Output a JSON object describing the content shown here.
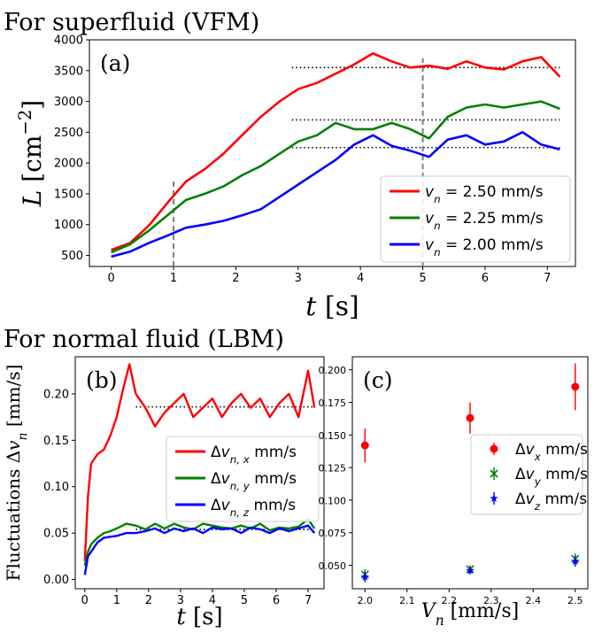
{
  "headings": {
    "top": "For superfluid (VFM)",
    "bottom": "For normal fluid (LBM)"
  },
  "chart_data": [
    {
      "type": "line",
      "panel_label": "(a)",
      "xlabel": "t [s]",
      "ylabel": "L [cm^-2]",
      "xlim": [
        -0.35,
        7.45
      ],
      "ylim": [
        320,
        4000
      ],
      "xticks": [
        0,
        1,
        2,
        3,
        4,
        5,
        6,
        7
      ],
      "yticks": [
        500,
        1000,
        1500,
        2000,
        2500,
        3000,
        3500,
        4000
      ],
      "grid": false,
      "legend_position": "bottom-right",
      "series": [
        {
          "name": "v_n = 2.50 mm/s",
          "color": "#ff0000",
          "x": [
            0,
            0.3,
            0.6,
            0.9,
            1.2,
            1.5,
            1.8,
            2.1,
            2.4,
            2.7,
            3.0,
            3.3,
            3.6,
            3.9,
            4.2,
            4.5,
            4.8,
            5.1,
            5.4,
            5.7,
            6.0,
            6.3,
            6.6,
            6.9,
            7.2
          ],
          "y": [
            590,
            700,
            980,
            1350,
            1700,
            1900,
            2150,
            2450,
            2750,
            3000,
            3200,
            3300,
            3450,
            3600,
            3780,
            3650,
            3550,
            3580,
            3530,
            3650,
            3550,
            3520,
            3650,
            3720,
            3400
          ]
        },
        {
          "name": "v_n = 2.25 mm/s",
          "color": "#008000",
          "x": [
            0,
            0.3,
            0.6,
            0.9,
            1.2,
            1.5,
            1.8,
            2.1,
            2.4,
            2.7,
            3.0,
            3.3,
            3.6,
            3.9,
            4.2,
            4.5,
            4.8,
            5.1,
            5.4,
            5.7,
            6.0,
            6.3,
            6.6,
            6.9,
            7.2
          ],
          "y": [
            550,
            680,
            900,
            1150,
            1400,
            1500,
            1620,
            1800,
            1950,
            2150,
            2350,
            2450,
            2650,
            2550,
            2550,
            2650,
            2550,
            2400,
            2750,
            2900,
            2950,
            2900,
            2950,
            3000,
            2880
          ]
        },
        {
          "name": "v_n = 2.00 mm/s",
          "color": "#0000ff",
          "x": [
            0,
            0.3,
            0.6,
            0.9,
            1.2,
            1.5,
            1.8,
            2.1,
            2.4,
            2.7,
            3.0,
            3.3,
            3.6,
            3.9,
            4.2,
            4.5,
            4.8,
            5.1,
            5.4,
            5.7,
            6.0,
            6.3,
            6.6,
            6.9,
            7.2
          ],
          "y": [
            480,
            560,
            700,
            820,
            950,
            1000,
            1060,
            1150,
            1250,
            1450,
            1650,
            1850,
            2050,
            2300,
            2450,
            2280,
            2200,
            2100,
            2380,
            2450,
            2300,
            2350,
            2500,
            2300,
            2220
          ]
        }
      ],
      "reference_lines": [
        {
          "kind": "horizontal",
          "style": "dotted",
          "y": 3550,
          "x_range": [
            2.9,
            7.2
          ]
        },
        {
          "kind": "horizontal",
          "style": "dotted",
          "y": 2700,
          "x_range": [
            2.9,
            7.2
          ]
        },
        {
          "kind": "horizontal",
          "style": "dotted",
          "y": 2250,
          "x_range": [
            2.9,
            7.2
          ]
        },
        {
          "kind": "vertical",
          "style": "dashed",
          "x": 1,
          "y_range": [
            320,
            1750
          ]
        },
        {
          "kind": "vertical",
          "style": "dashed",
          "x": 5,
          "y_range": [
            320,
            3700
          ]
        }
      ]
    },
    {
      "type": "line",
      "panel_label": "(b)",
      "xlabel": "t [s]",
      "ylabel": "Fluctuations Δv_n [mm/s]",
      "xlim": [
        -0.3,
        7.5
      ],
      "ylim": [
        -0.01,
        0.24
      ],
      "xticks": [
        0,
        1,
        2,
        3,
        4,
        5,
        6,
        7
      ],
      "yticks": [
        0.0,
        0.05,
        0.1,
        0.15,
        0.2
      ],
      "grid": false,
      "legend_position": "center-right",
      "series": [
        {
          "name": "Δv_n,x mm/s",
          "color": "#ff0000",
          "x": [
            0,
            0.1,
            0.2,
            0.4,
            0.6,
            0.8,
            1.0,
            1.2,
            1.4,
            1.6,
            1.9,
            2.2,
            2.5,
            2.8,
            3.1,
            3.4,
            3.7,
            4.0,
            4.3,
            4.6,
            4.9,
            5.2,
            5.5,
            5.8,
            6.1,
            6.4,
            6.7,
            7.0,
            7.2
          ],
          "y": [
            0.02,
            0.09,
            0.125,
            0.135,
            0.14,
            0.155,
            0.175,
            0.205,
            0.232,
            0.2,
            0.185,
            0.165,
            0.18,
            0.19,
            0.2,
            0.175,
            0.185,
            0.195,
            0.175,
            0.19,
            0.2,
            0.185,
            0.195,
            0.175,
            0.19,
            0.2,
            0.175,
            0.225,
            0.185
          ]
        },
        {
          "name": "Δv_n,y mm/s",
          "color": "#008000",
          "x": [
            0,
            0.1,
            0.2,
            0.4,
            0.6,
            0.8,
            1.0,
            1.3,
            1.6,
            1.9,
            2.2,
            2.5,
            2.8,
            3.1,
            3.4,
            3.7,
            4.0,
            4.3,
            4.6,
            4.9,
            5.2,
            5.5,
            5.8,
            6.1,
            6.4,
            6.7,
            7.0,
            7.2
          ],
          "y": [
            0.015,
            0.03,
            0.038,
            0.045,
            0.05,
            0.052,
            0.055,
            0.06,
            0.058,
            0.054,
            0.06,
            0.055,
            0.06,
            0.056,
            0.054,
            0.06,
            0.058,
            0.056,
            0.055,
            0.058,
            0.055,
            0.06,
            0.053,
            0.056,
            0.055,
            0.057,
            0.065,
            0.055
          ]
        },
        {
          "name": "Δv_n,z mm/s",
          "color": "#0000ff",
          "x": [
            0,
            0.1,
            0.2,
            0.4,
            0.6,
            0.8,
            1.0,
            1.3,
            1.6,
            1.9,
            2.2,
            2.5,
            2.8,
            3.1,
            3.4,
            3.7,
            4.0,
            4.3,
            4.6,
            4.9,
            5.2,
            5.5,
            5.8,
            6.1,
            6.4,
            6.7,
            7.0,
            7.2
          ],
          "y": [
            0.005,
            0.025,
            0.03,
            0.04,
            0.045,
            0.046,
            0.047,
            0.05,
            0.05,
            0.052,
            0.055,
            0.05,
            0.055,
            0.052,
            0.055,
            0.05,
            0.056,
            0.054,
            0.055,
            0.05,
            0.056,
            0.054,
            0.05,
            0.055,
            0.052,
            0.055,
            0.058,
            0.05
          ]
        }
      ],
      "reference_lines": [
        {
          "kind": "horizontal",
          "style": "dotted",
          "y": 0.186,
          "x_range": [
            1.6,
            7.2
          ]
        },
        {
          "kind": "horizontal",
          "style": "dotted",
          "y": 0.054,
          "x_range": [
            1.6,
            7.2
          ]
        }
      ]
    },
    {
      "type": "scatter",
      "panel_label": "(c)",
      "xlabel": "V_n [mm/s]",
      "ylabel": "",
      "xlim": [
        1.97,
        2.53
      ],
      "ylim": [
        0.032,
        0.21
      ],
      "xticks": [
        2.0,
        2.1,
        2.2,
        2.3,
        2.4,
        2.5
      ],
      "yticks": [
        0.05,
        0.075,
        0.1,
        0.125,
        0.15,
        0.175,
        0.2
      ],
      "grid": false,
      "legend_position": "center-right",
      "series": [
        {
          "name": "Δv_x mm/s",
          "color": "#ff0000",
          "marker": "circle",
          "x": [
            2.0,
            2.25,
            2.5
          ],
          "y": [
            0.142,
            0.163,
            0.187
          ],
          "err": [
            0.013,
            0.012,
            0.018
          ]
        },
        {
          "name": "Δv_y mm/s",
          "color": "#008000",
          "marker": "x",
          "x": [
            2.0,
            2.25,
            2.5
          ],
          "y": [
            0.043,
            0.047,
            0.055
          ],
          "err": [
            0.004,
            0.003,
            0.004
          ]
        },
        {
          "name": "Δv_z mm/s",
          "color": "#0000ff",
          "marker": "star",
          "x": [
            2.0,
            2.25,
            2.5
          ],
          "y": [
            0.041,
            0.046,
            0.053
          ],
          "err": [
            0.004,
            0.003,
            0.004
          ]
        }
      ]
    }
  ]
}
